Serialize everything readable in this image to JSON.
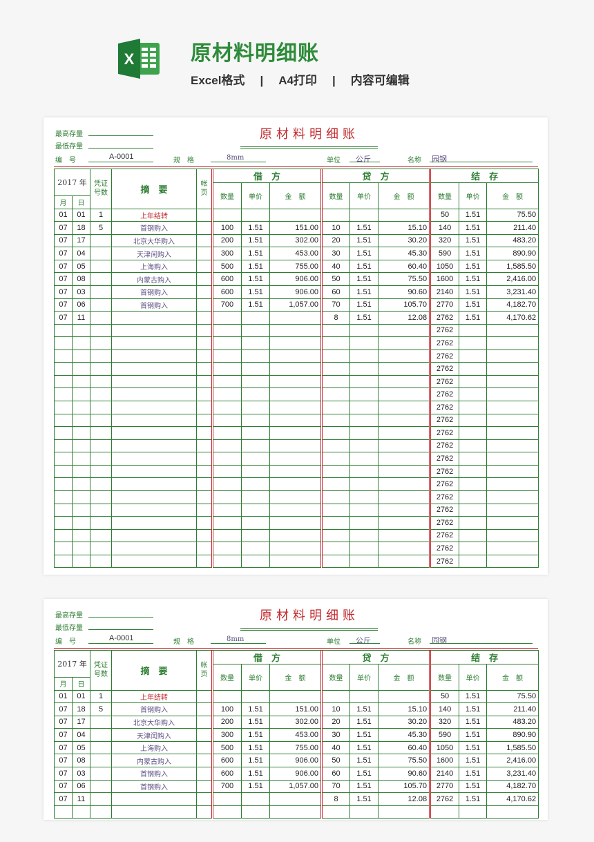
{
  "header": {
    "title": "原材料明细账",
    "features": [
      "Excel格式",
      "A4打印",
      "内容可编辑"
    ],
    "separator": "|",
    "logo_letter": "X"
  },
  "sheet": {
    "title": "原材料明细账",
    "max_stock_label": "最高存量",
    "min_stock_label": "最低存量",
    "code_label": "编　号",
    "code_value": "A-0001",
    "spec_label": "规　格",
    "spec_value": "8mm",
    "unit_label": "单位",
    "unit_value": "公斤",
    "name_label": "名称",
    "name_value": "园钢",
    "year": "2017 年",
    "voucher": "凭证号数",
    "summary": "摘　要",
    "page": "帐页",
    "month": "月",
    "day": "日",
    "groups": [
      "借　方",
      "贷　方",
      "结　存"
    ],
    "sub": [
      "数量",
      "单价",
      "金　额"
    ]
  },
  "rows": [
    [
      "01",
      "01",
      "1",
      "上年结转",
      "",
      "",
      "",
      "",
      "",
      "",
      "",
      "50",
      "1.51",
      "75.50"
    ],
    [
      "07",
      "18",
      "5",
      "首钢购入",
      "",
      "100",
      "1.51",
      "151.00",
      "10",
      "1.51",
      "15.10",
      "140",
      "1.51",
      "211.40"
    ],
    [
      "07",
      "17",
      "",
      "北京大华购入",
      "",
      "200",
      "1.51",
      "302.00",
      "20",
      "1.51",
      "30.20",
      "320",
      "1.51",
      "483.20"
    ],
    [
      "07",
      "04",
      "",
      "天津闰购入",
      "",
      "300",
      "1.51",
      "453.00",
      "30",
      "1.51",
      "45.30",
      "590",
      "1.51",
      "890.90"
    ],
    [
      "07",
      "05",
      "",
      "上海购入",
      "",
      "500",
      "1.51",
      "755.00",
      "40",
      "1.51",
      "60.40",
      "1050",
      "1.51",
      "1,585.50"
    ],
    [
      "07",
      "08",
      "",
      "内蒙古购入",
      "",
      "600",
      "1.51",
      "906.00",
      "50",
      "1.51",
      "75.50",
      "1600",
      "1.51",
      "2,416.00"
    ],
    [
      "07",
      "03",
      "",
      "首钢购入",
      "",
      "600",
      "1.51",
      "906.00",
      "60",
      "1.51",
      "90.60",
      "2140",
      "1.51",
      "3,231.40"
    ],
    [
      "07",
      "06",
      "",
      "首钢购入",
      "",
      "700",
      "1.51",
      "1,057.00",
      "70",
      "1.51",
      "105.70",
      "2770",
      "1.51",
      "4,182.70"
    ],
    [
      "07",
      "11",
      "",
      "",
      "",
      "",
      "",
      "",
      "8",
      "1.51",
      "12.08",
      "2762",
      "1.51",
      "4,170.62"
    ]
  ],
  "carry_rows": {
    "balance_qty": "2762",
    "count": 19
  },
  "colors": {
    "green": "#2e7d32",
    "red": "#c0282d",
    "brand": "#2e8b3a"
  }
}
